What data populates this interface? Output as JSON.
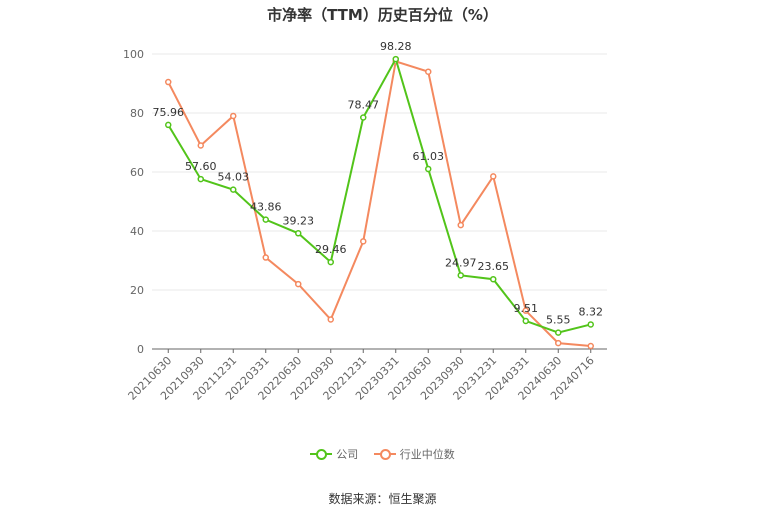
{
  "chart_data": {
    "type": "line",
    "title": "市净率（TTM）历史百分位（%）",
    "categories": [
      "20210630",
      "20210930",
      "20211231",
      "20220331",
      "20220630",
      "20220930",
      "20221231",
      "20230331",
      "20230630",
      "20230930",
      "20231231",
      "20240331",
      "20240630",
      "20240716"
    ],
    "series": [
      {
        "name": "公司",
        "color": "#52c41a",
        "values": [
          75.96,
          57.6,
          54.03,
          43.86,
          39.23,
          29.46,
          78.47,
          98.28,
          61.03,
          24.97,
          23.65,
          9.51,
          5.55,
          8.32
        ],
        "labels": [
          "75.96",
          "57.60",
          "54.03",
          "43.86",
          "39.23",
          "29.46",
          "78.47",
          "98.28",
          "61.03",
          "24.97",
          "23.65",
          "9.51",
          "5.55",
          "8.32"
        ]
      },
      {
        "name": "行业中位数",
        "color": "#f4895f",
        "values": [
          90.5,
          69.0,
          79.0,
          31.0,
          22.0,
          10.0,
          36.5,
          97.5,
          94.0,
          42.0,
          58.5,
          13.0,
          2.0,
          1.0
        ]
      }
    ],
    "ylim": [
      0,
      100
    ],
    "yticks": [
      0,
      20,
      40,
      60,
      80,
      100
    ],
    "grid": true,
    "legend_position": "bottom"
  },
  "source": "数据来源：恒生聚源"
}
